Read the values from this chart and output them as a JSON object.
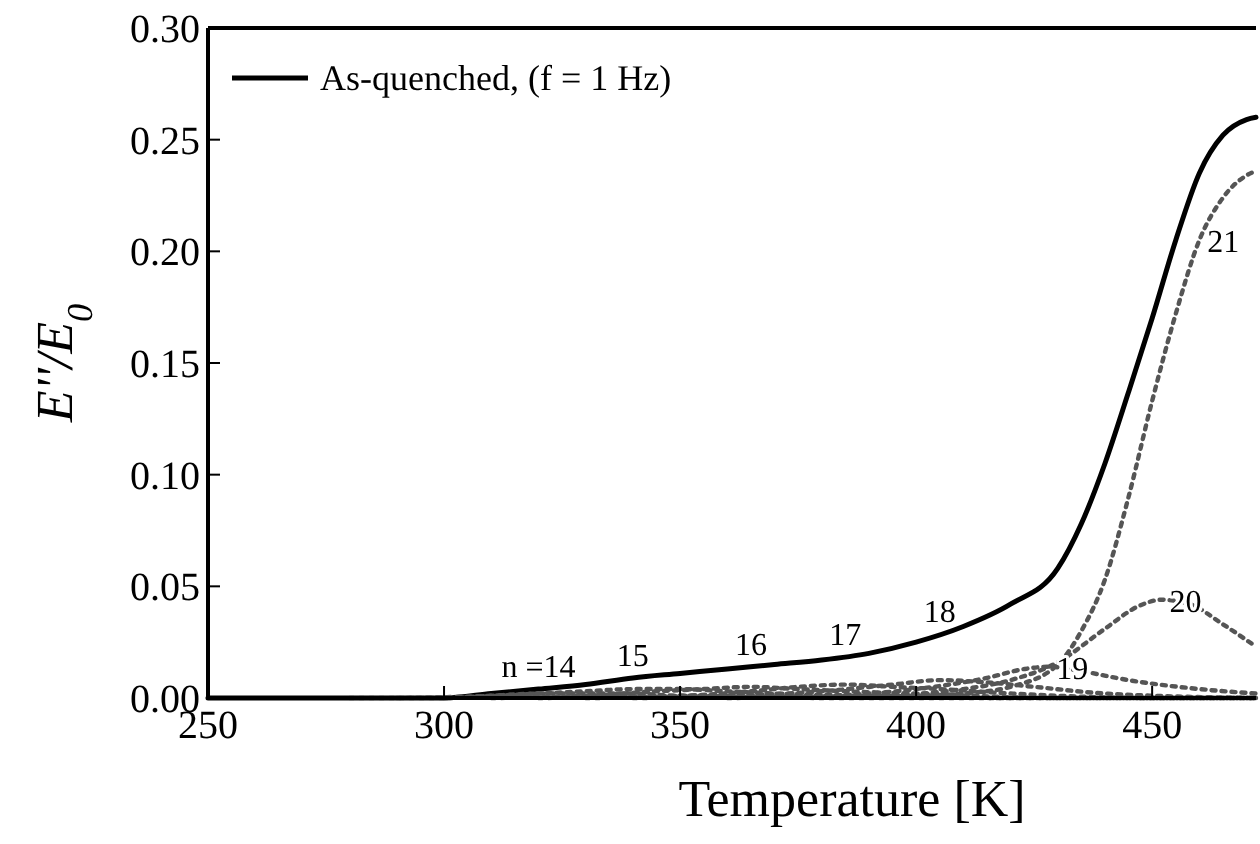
{
  "chart_data": {
    "type": "line",
    "xlabel": "Temperature [K]",
    "ylabel": "E''/E$_{0}$",
    "xlim": [
      250,
      472
    ],
    "ylim": [
      0,
      0.3
    ],
    "xticks": [
      250,
      300,
      350,
      400,
      450
    ],
    "yticks": [
      {
        "value": 0,
        "label": "0.00"
      },
      {
        "value": 0.05,
        "label": "0.05"
      },
      {
        "value": 0.1,
        "label": "0.10"
      },
      {
        "value": 0.15,
        "label": "0.15"
      },
      {
        "value": 0.2,
        "label": "0.20"
      },
      {
        "value": 0.25,
        "label": "0.25"
      },
      {
        "value": 0.3,
        "label": "0.30"
      }
    ],
    "grid": false,
    "legend": "top left",
    "marker": "none",
    "series": [
      {
        "name": "As-quenched, (f = 1 Hz)",
        "color": "#000000",
        "line_style": "solid",
        "x": [
          250,
          280,
          300,
          310,
          320,
          330,
          340,
          350,
          360,
          370,
          380,
          390,
          400,
          410,
          420,
          430,
          435,
          440,
          445,
          450,
          455,
          460,
          465,
          470,
          472
        ],
        "values": [
          0,
          0,
          0,
          0.002,
          0.004,
          0.006,
          0.009,
          0.011,
          0.013,
          0.015,
          0.017,
          0.02,
          0.025,
          0.032,
          0.042,
          0.058,
          0.078,
          0.105,
          0.137,
          0.17,
          0.205,
          0.235,
          0.252,
          0.259,
          0.26
        ]
      },
      {
        "color": "#555555",
        "line_style": "dotted",
        "x": [
          280,
          300,
          310,
          320,
          330,
          340,
          350,
          360,
          380,
          400,
          472
        ],
        "values": [
          0,
          0,
          0.001,
          0.002,
          0.002,
          0.002,
          0.001,
          0.001,
          0,
          0,
          0
        ]
      },
      {
        "color": "#555555",
        "line_style": "dotted",
        "x": [
          290,
          310,
          320,
          330,
          340,
          350,
          360,
          370,
          390,
          420,
          472
        ],
        "values": [
          0,
          0.001,
          0.002,
          0.003,
          0.004,
          0.004,
          0.003,
          0.002,
          0.001,
          0,
          0
        ]
      },
      {
        "color": "#555555",
        "line_style": "dotted",
        "x": [
          300,
          330,
          345,
          355,
          365,
          375,
          385,
          400,
          430,
          472
        ],
        "values": [
          0,
          0.001,
          0.003,
          0.004,
          0.005,
          0.004,
          0.003,
          0.002,
          0,
          0
        ]
      },
      {
        "color": "#555555",
        "line_style": "dotted",
        "x": [
          310,
          350,
          365,
          375,
          385,
          395,
          405,
          420,
          450,
          472
        ],
        "values": [
          0,
          0.001,
          0.003,
          0.005,
          0.006,
          0.005,
          0.004,
          0.002,
          0,
          0
        ]
      },
      {
        "color": "#555555",
        "line_style": "dotted",
        "x": [
          320,
          360,
          380,
          395,
          405,
          415,
          425,
          440,
          472
        ],
        "values": [
          0,
          0.001,
          0.003,
          0.006,
          0.008,
          0.007,
          0.005,
          0.002,
          0
        ]
      },
      {
        "color": "#555555",
        "line_style": "dotted",
        "x": [
          330,
          380,
          400,
          415,
          423,
          428,
          435,
          445,
          460,
          472
        ],
        "values": [
          0,
          0.001,
          0.004,
          0.009,
          0.013,
          0.014,
          0.012,
          0.008,
          0.004,
          0.002
        ]
      },
      {
        "color": "#555555",
        "line_style": "dotted",
        "x": [
          340,
          390,
          410,
          420,
          430,
          440,
          447,
          452,
          458,
          465,
          472
        ],
        "values": [
          0,
          0.001,
          0.004,
          0.008,
          0.016,
          0.031,
          0.041,
          0.044,
          0.042,
          0.033,
          0.023
        ]
      },
      {
        "color": "#555555",
        "line_style": "dotted",
        "x": [
          360,
          400,
          410,
          420,
          430,
          435,
          440,
          445,
          450,
          455,
          460,
          465,
          470,
          472
        ],
        "values": [
          0,
          0.001,
          0.002,
          0.005,
          0.015,
          0.03,
          0.053,
          0.09,
          0.133,
          0.172,
          0.205,
          0.224,
          0.234,
          0.236
        ]
      }
    ],
    "annotations": [
      {
        "text": "n =14",
        "x": 320,
        "y": 0.002
      },
      {
        "text": "15",
        "x": 340,
        "y": 0.004
      },
      {
        "text": "16",
        "x": 365,
        "y": 0.005
      },
      {
        "text": "17",
        "x": 385,
        "y": 0.006
      },
      {
        "text": "18",
        "x": 405,
        "y": 0.008
      },
      {
        "text": "19",
        "x": 428,
        "y": 0.014
      },
      {
        "text": "20",
        "x": 452,
        "y": 0.044
      },
      {
        "text": "21",
        "x": 460,
        "y": 0.205
      }
    ]
  }
}
